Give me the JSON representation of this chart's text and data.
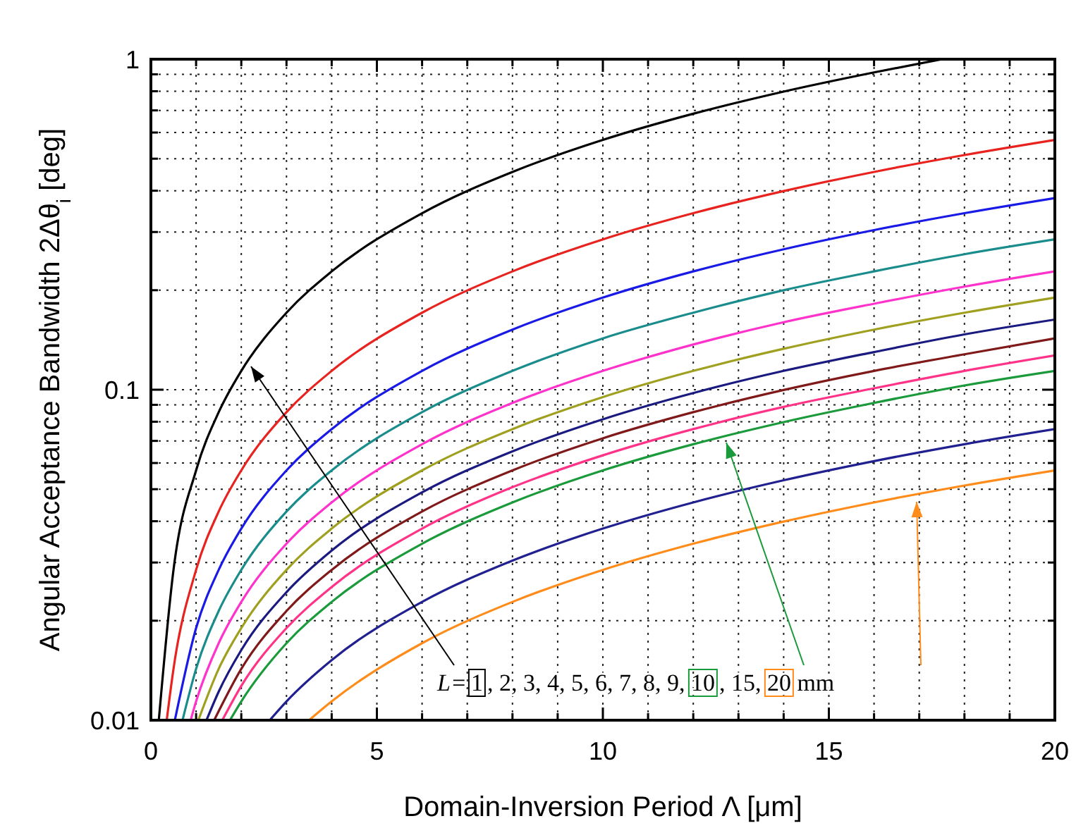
{
  "chart_data": {
    "type": "line",
    "xlabel": "Domain-Inversion Period Λ [μm]",
    "ylabel": "Angular Acceptance Bandwidth 2Δθ$_{i}$ [deg]",
    "log": "y",
    "grid": true,
    "xlim": [
      0,
      20
    ],
    "ylim": [
      0.01,
      1
    ],
    "xticks": [
      0,
      {
        "value": 1,
        "label": null
      },
      {
        "value": 2,
        "label": null
      },
      {
        "value": 3,
        "label": null
      },
      {
        "value": 4,
        "label": null
      },
      5,
      {
        "value": 6,
        "label": null
      },
      {
        "value": 7,
        "label": null
      },
      {
        "value": 8,
        "label": null
      },
      {
        "value": 9,
        "label": null
      },
      10,
      {
        "value": 11,
        "label": null
      },
      {
        "value": 12,
        "label": null
      },
      {
        "value": 13,
        "label": null
      },
      {
        "value": 14,
        "label": null
      },
      15,
      {
        "value": 16,
        "label": null
      },
      {
        "value": 17,
        "label": null
      },
      {
        "value": 18,
        "label": null
      },
      {
        "value": 19,
        "label": null
      },
      20
    ],
    "yticks": [
      0.01,
      {
        "value": 0.02,
        "label": null
      },
      {
        "value": 0.03,
        "label": null
      },
      {
        "value": 0.04,
        "label": null
      },
      {
        "value": 0.05,
        "label": null
      },
      {
        "value": 0.06,
        "label": null
      },
      {
        "value": 0.07,
        "label": null
      },
      {
        "value": 0.08,
        "label": null
      },
      {
        "value": 0.09,
        "label": null
      },
      0.1,
      {
        "value": 0.2,
        "label": null
      },
      {
        "value": 0.3,
        "label": null
      },
      {
        "value": 0.4,
        "label": null
      },
      {
        "value": 0.5,
        "label": null
      },
      {
        "value": 0.6,
        "label": null
      },
      {
        "value": 0.7,
        "label": null
      },
      {
        "value": 0.8,
        "label": null
      },
      {
        "value": 0.9,
        "label": null
      },
      1
    ],
    "annotations": [
      "L=1, 2, 3, 4, 5, 6, 7, 8, 9, 10, 15, 20 mm"
    ],
    "series": [
      {
        "color": "#000000",
        "x": [
          0.175,
          0.5,
          1,
          1.5,
          2,
          3,
          4,
          6,
          8,
          10,
          12,
          14,
          16,
          17.5
        ],
        "values": [
          0.01,
          0.0285,
          0.057,
          0.0855,
          0.114,
          0.171,
          0.228,
          0.342,
          0.456,
          0.57,
          0.684,
          0.798,
          0.912,
          1.0
        ]
      },
      {
        "color": "#e8231f",
        "x": [
          0.35,
          0.5,
          1,
          1.5,
          2,
          3,
          4,
          6,
          8,
          10,
          12,
          14,
          16,
          18,
          20
        ],
        "values": [
          0.01,
          0.0143,
          0.0285,
          0.0428,
          0.057,
          0.0855,
          0.114,
          0.171,
          0.228,
          0.285,
          0.342,
          0.399,
          0.456,
          0.513,
          0.57
        ]
      },
      {
        "color": "#1a1ae6",
        "x": [
          0.53,
          1,
          1.5,
          2,
          3,
          4,
          6,
          8,
          10,
          12,
          14,
          16,
          18,
          20
        ],
        "values": [
          0.01,
          0.019,
          0.0285,
          0.038,
          0.057,
          0.076,
          0.114,
          0.152,
          0.19,
          0.228,
          0.266,
          0.304,
          0.342,
          0.38
        ]
      },
      {
        "color": "#1a8c8c",
        "x": [
          0.7,
          1,
          1.5,
          2,
          3,
          4,
          6,
          8,
          10,
          12,
          14,
          16,
          18,
          20
        ],
        "values": [
          0.01,
          0.0143,
          0.0214,
          0.0285,
          0.0428,
          0.057,
          0.0855,
          0.114,
          0.143,
          0.171,
          0.2,
          0.228,
          0.257,
          0.285
        ]
      },
      {
        "color": "#ff33cc",
        "x": [
          0.88,
          1,
          1.5,
          2,
          3,
          4,
          6,
          8,
          10,
          12,
          14,
          16,
          18,
          20
        ],
        "values": [
          0.01,
          0.0114,
          0.0171,
          0.0228,
          0.0342,
          0.0456,
          0.0684,
          0.0912,
          0.114,
          0.137,
          0.16,
          0.182,
          0.205,
          0.228
        ]
      },
      {
        "color": "#a0a020",
        "x": [
          1.05,
          1.5,
          2,
          3,
          4,
          6,
          8,
          10,
          12,
          14,
          16,
          18,
          20
        ],
        "values": [
          0.01,
          0.0143,
          0.019,
          0.0285,
          0.038,
          0.057,
          0.076,
          0.095,
          0.114,
          0.133,
          0.152,
          0.171,
          0.19
        ]
      },
      {
        "color": "#1a1a80",
        "x": [
          1.23,
          1.5,
          2,
          3,
          4,
          6,
          8,
          10,
          12,
          14,
          16,
          18,
          20
        ],
        "values": [
          0.01,
          0.0122,
          0.0163,
          0.0244,
          0.0326,
          0.0489,
          0.0651,
          0.0814,
          0.0977,
          0.114,
          0.13,
          0.147,
          0.163
        ]
      },
      {
        "color": "#801a1a",
        "x": [
          1.4,
          2,
          3,
          4,
          6,
          8,
          10,
          12,
          14,
          16,
          18,
          20
        ],
        "values": [
          0.01,
          0.0143,
          0.0214,
          0.0285,
          0.0428,
          0.057,
          0.0713,
          0.0855,
          0.0998,
          0.114,
          0.128,
          0.143
        ]
      },
      {
        "color": "#ff3388",
        "x": [
          1.58,
          2,
          3,
          4,
          6,
          8,
          10,
          12,
          14,
          16,
          18,
          20
        ],
        "values": [
          0.01,
          0.0127,
          0.019,
          0.0253,
          0.038,
          0.0507,
          0.0633,
          0.076,
          0.0887,
          0.101,
          0.114,
          0.127
        ]
      },
      {
        "color": "#1a9a3a",
        "x": [
          1.75,
          2,
          3,
          4,
          6,
          8,
          10,
          12,
          14,
          16,
          18,
          20
        ],
        "values": [
          0.01,
          0.0114,
          0.0171,
          0.0228,
          0.0342,
          0.0456,
          0.057,
          0.0684,
          0.0798,
          0.0912,
          0.103,
          0.114
        ]
      },
      {
        "color": "#202090",
        "x": [
          2.63,
          3,
          4,
          6,
          8,
          10,
          12,
          14,
          16,
          18,
          20
        ],
        "values": [
          0.01,
          0.0114,
          0.0152,
          0.0228,
          0.0304,
          0.038,
          0.0456,
          0.0532,
          0.0608,
          0.0684,
          0.076
        ]
      },
      {
        "color": "#ff8c1a",
        "x": [
          3.5,
          4,
          6,
          8,
          10,
          12,
          14,
          16,
          18,
          20
        ],
        "values": [
          0.01,
          0.0114,
          0.0171,
          0.0228,
          0.0285,
          0.0342,
          0.0399,
          0.0456,
          0.0513,
          0.057
        ]
      }
    ]
  }
}
